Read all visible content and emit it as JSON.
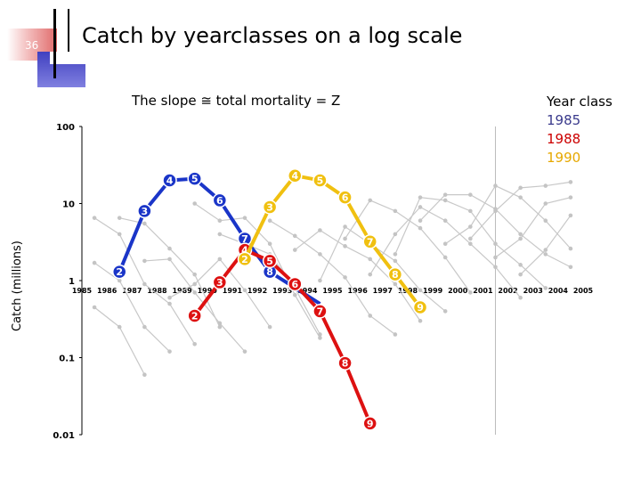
{
  "slide": {
    "number": "36",
    "title": "Catch by yearclasses on a log scale"
  },
  "subtitle": "The slope ≅ total mortality = Z",
  "legend": {
    "title": "Year class",
    "items": [
      {
        "label": "1985",
        "color": "#3a3a8c"
      },
      {
        "label": "1988",
        "color": "#cc0000"
      },
      {
        "label": "1990",
        "color": "#e6a800"
      }
    ]
  },
  "chart_data": {
    "type": "line",
    "ylabel": "Catch (millions)",
    "yscale": "log",
    "ylim": [
      0.01,
      100
    ],
    "yticks": [
      "100",
      "10",
      "1",
      "0.1",
      "0.01"
    ],
    "ytick_values": [
      100,
      10,
      1,
      0.1,
      0.01
    ],
    "x_categories": [
      "1985",
      "1986",
      "1987",
      "1988",
      "1989",
      "1990",
      "1991",
      "1992",
      "1993",
      "1994",
      "1995",
      "1996",
      "1997",
      "1998",
      "1999",
      "2000",
      "2001",
      "2002",
      "2003",
      "2004",
      "2005"
    ],
    "vertical_reference_year": 2001.5,
    "highlighted_series": [
      {
        "name": "1985",
        "color": "#1a35c8",
        "label_color": "#1a35c8",
        "points": [
          {
            "x": 1986.5,
            "y": 1.3,
            "age": "2"
          },
          {
            "x": 1987.5,
            "y": 8,
            "age": "3"
          },
          {
            "x": 1988.5,
            "y": 20,
            "age": "4"
          },
          {
            "x": 1989.5,
            "y": 21,
            "age": "5"
          },
          {
            "x": 1990.5,
            "y": 11,
            "age": "6"
          },
          {
            "x": 1991.5,
            "y": 3.5,
            "age": "7"
          },
          {
            "x": 1992.5,
            "y": 1.3,
            "age": "8"
          }
        ],
        "line_end": {
          "x": 1994.5,
          "y": 0.5
        }
      },
      {
        "name": "1988",
        "color": "#dd1111",
        "label_color": "#dd1111",
        "points": [
          {
            "x": 1989.5,
            "y": 0.35,
            "age": "2"
          },
          {
            "x": 1990.5,
            "y": 0.95,
            "age": "3"
          },
          {
            "x": 1991.5,
            "y": 2.5,
            "age": "4"
          },
          {
            "x": 1992.5,
            "y": 1.8,
            "age": "5"
          },
          {
            "x": 1993.5,
            "y": 0.9,
            "age": "6"
          },
          {
            "x": 1994.5,
            "y": 0.4,
            "age": "7"
          },
          {
            "x": 1995.5,
            "y": 0.085,
            "age": "8"
          },
          {
            "x": 1996.5,
            "y": 0.014,
            "age": "9"
          }
        ]
      },
      {
        "name": "1990",
        "color": "#f0c010",
        "label_color": "#f0c010",
        "points": [
          {
            "x": 1991.5,
            "y": 1.9,
            "age": "2"
          },
          {
            "x": 1992.5,
            "y": 9,
            "age": "3"
          },
          {
            "x": 1993.5,
            "y": 23,
            "age": "4"
          },
          {
            "x": 1994.5,
            "y": 20,
            "age": "5"
          },
          {
            "x": 1995.5,
            "y": 12,
            "age": "6"
          },
          {
            "x": 1996.5,
            "y": 3.2,
            "age": "7"
          },
          {
            "x": 1997.5,
            "y": 1.2,
            "age": "8"
          },
          {
            "x": 1998.5,
            "y": 0.45,
            "age": "9"
          }
        ]
      }
    ],
    "background_series": [
      {
        "points": [
          [
            1985.5,
            6.5
          ],
          [
            1986.5,
            4
          ],
          [
            1987.5,
            0.9
          ],
          [
            1988.5,
            0.5
          ],
          [
            1989.5,
            0.15
          ]
        ]
      },
      {
        "points": [
          [
            1985.5,
            1.7
          ],
          [
            1986.5,
            1.0
          ],
          [
            1987.5,
            0.25
          ],
          [
            1988.5,
            0.12
          ]
        ]
      },
      {
        "points": [
          [
            1985.5,
            0.45
          ],
          [
            1986.5,
            0.25
          ],
          [
            1987.5,
            0.06
          ]
        ]
      },
      {
        "points": [
          [
            1986.5,
            6.5
          ],
          [
            1987.5,
            5.5
          ],
          [
            1988.5,
            2.6
          ],
          [
            1989.5,
            1.2
          ],
          [
            1990.5,
            0.25
          ]
        ]
      },
      {
        "points": [
          [
            1987.5,
            1.8
          ],
          [
            1988.5,
            1.9
          ],
          [
            1989.5,
            0.7
          ],
          [
            1990.5,
            0.28
          ],
          [
            1991.5,
            0.12
          ]
        ]
      },
      {
        "points": [
          [
            1988.5,
            0.6
          ],
          [
            1989.5,
            0.9
          ],
          [
            1990.5,
            1.9
          ],
          [
            1991.5,
            0.75
          ],
          [
            1992.5,
            0.25
          ]
        ]
      },
      {
        "points": [
          [
            1989.5,
            10
          ],
          [
            1990.5,
            6
          ],
          [
            1991.5,
            6.5
          ],
          [
            1992.5,
            3
          ],
          [
            1993.5,
            0.65
          ],
          [
            1994.5,
            0.18
          ]
        ]
      },
      {
        "points": [
          [
            1990.5,
            4
          ],
          [
            1991.5,
            3
          ],
          [
            1992.5,
            2.2
          ],
          [
            1993.5,
            0.8
          ],
          [
            1994.5,
            0.2
          ]
        ]
      },
      {
        "points": [
          [
            1992.5,
            6
          ],
          [
            1993.5,
            3.8
          ],
          [
            1994.5,
            2.2
          ],
          [
            1995.5,
            1.1
          ],
          [
            1996.5,
            0.35
          ],
          [
            1997.5,
            0.2
          ]
        ]
      },
      {
        "points": [
          [
            1993.5,
            2.5
          ],
          [
            1994.5,
            4.5
          ],
          [
            1995.5,
            2.8
          ],
          [
            1996.5,
            1.9
          ],
          [
            1997.5,
            0.9
          ],
          [
            1998.5,
            0.3
          ]
        ]
      },
      {
        "points": [
          [
            1994.5,
            1.0
          ],
          [
            1995.5,
            5
          ],
          [
            1996.5,
            3
          ],
          [
            1997.5,
            1.8
          ],
          [
            1998.5,
            0.75
          ],
          [
            1999.5,
            0.4
          ]
        ]
      },
      {
        "points": [
          [
            1995.5,
            3.5
          ],
          [
            1996.5,
            11
          ],
          [
            1997.5,
            8
          ],
          [
            1998.5,
            4.8
          ],
          [
            1999.5,
            2
          ],
          [
            2000.5,
            0.7
          ]
        ]
      },
      {
        "points": [
          [
            1996.5,
            1.2
          ],
          [
            1997.5,
            4
          ],
          [
            1998.5,
            9
          ],
          [
            1999.5,
            6
          ],
          [
            2000.5,
            3
          ],
          [
            2001.5,
            1.5
          ],
          [
            2002.5,
            0.6
          ]
        ]
      },
      {
        "points": [
          [
            1997.5,
            2.2
          ],
          [
            1998.5,
            12
          ],
          [
            1999.5,
            11
          ],
          [
            2000.5,
            8
          ],
          [
            2001.5,
            3
          ],
          [
            2002.5,
            1.6
          ],
          [
            2003.5,
            0.8
          ]
        ]
      },
      {
        "points": [
          [
            1998.5,
            6
          ],
          [
            1999.5,
            13
          ],
          [
            2000.5,
            13
          ],
          [
            2001.5,
            8.5
          ],
          [
            2002.5,
            4
          ],
          [
            2003.5,
            2.2
          ],
          [
            2004.5,
            1.5
          ]
        ]
      },
      {
        "points": [
          [
            1999.5,
            3
          ],
          [
            2000.5,
            5
          ],
          [
            2001.5,
            17
          ],
          [
            2002.5,
            12
          ],
          [
            2003.5,
            6
          ],
          [
            2004.5,
            2.6
          ]
        ]
      },
      {
        "points": [
          [
            2000.5,
            3.5
          ],
          [
            2001.5,
            8
          ],
          [
            2002.5,
            16
          ],
          [
            2003.5,
            17
          ],
          [
            2004.5,
            19
          ]
        ]
      },
      {
        "points": [
          [
            2001.5,
            2.0
          ],
          [
            2002.5,
            3.5
          ],
          [
            2003.5,
            10
          ],
          [
            2004.5,
            12
          ]
        ]
      },
      {
        "points": [
          [
            2002.5,
            1.2
          ],
          [
            2003.5,
            2.5
          ],
          [
            2004.5,
            7
          ]
        ]
      }
    ]
  }
}
